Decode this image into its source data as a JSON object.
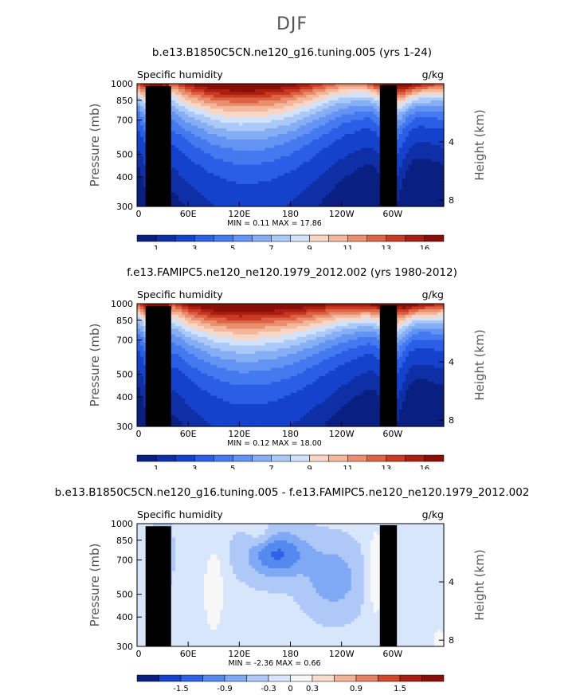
{
  "page_title": "DJF",
  "panels": [
    {
      "title": "b.e13.B1850C5CN.ne120_g16.tuning.005 (yrs 1-24)",
      "left_label": "Specific humidity",
      "right_label": "g/kg",
      "stats": "MIN =    0.11   MAX =    17.86",
      "colorbar_labels": [
        "1",
        "3",
        "5",
        "7",
        "9",
        "11",
        "13",
        "16"
      ]
    },
    {
      "title": "f.e13.FAMIPC5.ne120_ne120.1979_2012.002 (yrs 1980-2012)",
      "left_label": "Specific humidity",
      "right_label": "g/kg",
      "stats": "MIN =    0.12   MAX =    18.00",
      "colorbar_labels": [
        "1",
        "3",
        "5",
        "7",
        "9",
        "11",
        "13",
        "16"
      ]
    },
    {
      "title": "b.e13.B1850C5CN.ne120_g16.tuning.005 - f.e13.FAMIPC5.ne120_ne120.1979_2012.002",
      "left_label": "Specific humidity",
      "right_label": "g/kg",
      "stats": "MIN =   -2.36   MAX =    0.66",
      "colorbar_labels": [
        "-1.5",
        "-0.9",
        "-0.3",
        "0",
        "0.3",
        "0.9",
        "1.5"
      ]
    }
  ],
  "axes": {
    "ylabel": "Pressure (mb)",
    "y2label": "Height (km)",
    "yticks": [
      "300",
      "400",
      "500",
      "700",
      "850",
      "1000"
    ],
    "y2ticks": [
      "8",
      "4"
    ],
    "xticks": [
      "0",
      "60E",
      "120E",
      "180",
      "120W",
      "60W"
    ]
  },
  "colors": {
    "abs_scale": [
      "#0a1f82",
      "#0e2fa6",
      "#1442cc",
      "#2a5ee6",
      "#4579ef",
      "#6393f3",
      "#86aef5",
      "#aac8f8",
      "#d2e2fa",
      "#f7d6c6",
      "#f3b79c",
      "#ea8f6e",
      "#de6245",
      "#c83b22",
      "#a91f12",
      "#8a0f08"
    ],
    "diff_scale": [
      "#0a1f82",
      "#1442cc",
      "#2e62e6",
      "#5489ef",
      "#7fa9f4",
      "#aec8f8",
      "#d8e6fb",
      "#f7f7f7",
      "#f8dccb",
      "#f3b293",
      "#e58060",
      "#cf4a2c",
      "#a91f12",
      "#8a0f08"
    ]
  },
  "chart_data": [
    {
      "type": "heatmap",
      "title": "b.e13.B1850C5CN.ne120_g16.tuning.005 (yrs 1-24)",
      "variable": "Specific humidity",
      "units": "g/kg",
      "xlabel": "",
      "ylabel": "Pressure (mb)",
      "xlim": [
        0,
        360
      ],
      "ylim": [
        1000,
        300
      ],
      "levels": [
        0.5,
        1,
        2,
        3,
        4,
        5,
        6,
        7,
        8,
        9,
        10,
        11,
        12,
        13,
        14,
        16
      ],
      "profile_x": [
        0,
        15,
        25,
        30,
        35,
        40,
        50,
        60,
        90,
        120,
        150,
        180,
        210,
        240,
        270,
        285,
        295,
        300,
        305,
        315,
        330,
        360
      ],
      "profile_q850": [
        7.5,
        11,
        14,
        9,
        12,
        7,
        8.5,
        10,
        12,
        12.5,
        12,
        11,
        9,
        7,
        7.5,
        10,
        12,
        16,
        11,
        12,
        10,
        8
      ],
      "min": 0.11,
      "max": 17.86
    },
    {
      "type": "heatmap",
      "title": "f.e13.FAMIPC5.ne120_ne120.1979_2012.002 (yrs 1980-2012)",
      "variable": "Specific humidity",
      "units": "g/kg",
      "xlabel": "",
      "ylabel": "Pressure (mb)",
      "xlim": [
        0,
        360
      ],
      "ylim": [
        1000,
        300
      ],
      "levels": [
        0.5,
        1,
        2,
        3,
        4,
        5,
        6,
        7,
        8,
        9,
        10,
        11,
        12,
        13,
        14,
        16
      ],
      "profile_x": [
        0,
        15,
        25,
        30,
        35,
        40,
        50,
        60,
        90,
        120,
        150,
        180,
        210,
        240,
        270,
        285,
        295,
        300,
        305,
        315,
        330,
        360
      ],
      "profile_q850": [
        8,
        11.5,
        14.5,
        10,
        12.5,
        8,
        9,
        10.5,
        12.5,
        13,
        12.5,
        12,
        11,
        10,
        10.5,
        11.5,
        12.5,
        16,
        11.5,
        12.5,
        11,
        9
      ],
      "min": 0.12,
      "max": 18.0
    },
    {
      "type": "heatmap",
      "title": "b.e13.B1850C5CN.ne120_g16.tuning.005 - f.e13.FAMIPC5.ne120_ne120.1979_2012.002",
      "variable": "Specific humidity",
      "units": "g/kg",
      "xlabel": "",
      "ylabel": "Pressure (mb)",
      "xlim": [
        0,
        360
      ],
      "ylim": [
        1000,
        300
      ],
      "levels": [
        -1.8,
        -1.5,
        -1.2,
        -0.9,
        -0.6,
        -0.3,
        0,
        0.3,
        0.6,
        0.9,
        1.2,
        1.5,
        1.8
      ],
      "min": -2.36,
      "max": 0.66
    }
  ]
}
